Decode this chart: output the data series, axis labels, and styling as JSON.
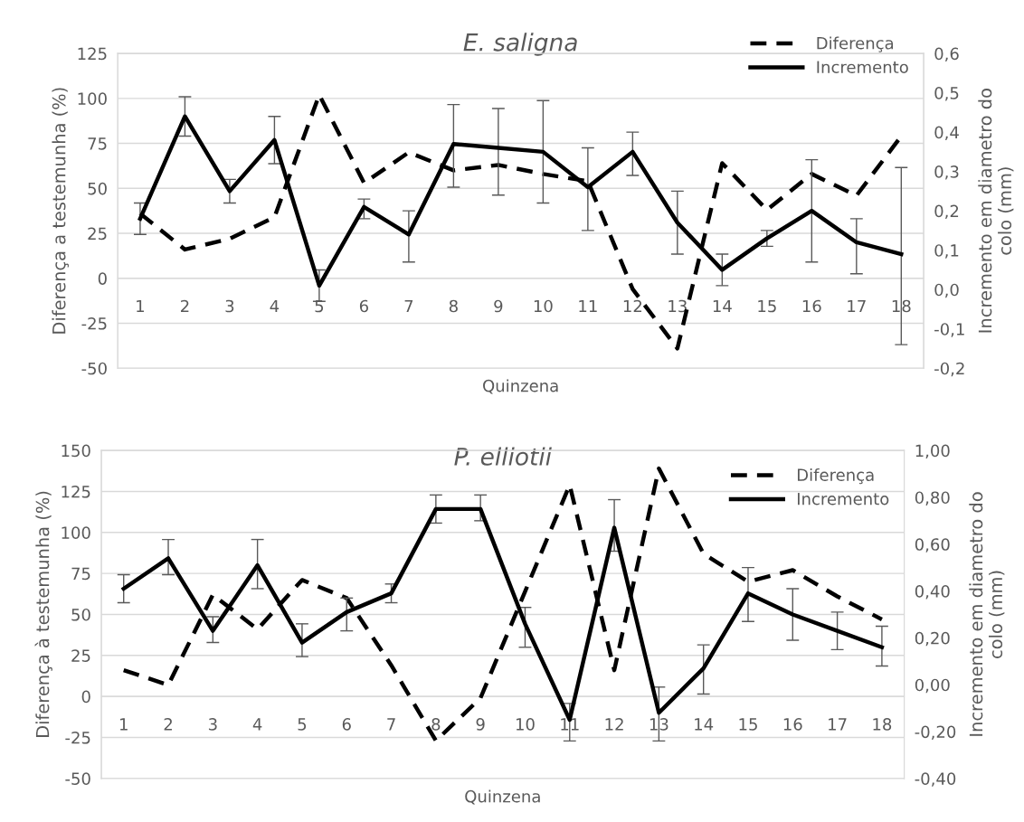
{
  "chart_data": [
    {
      "type": "line",
      "title": "E. saligna",
      "xlabel": "Quinzena",
      "ylabel": "Diferença a testemunha (%)",
      "y2label": "Incremento em diametro do\ncolo (mm)",
      "categories": [
        "1",
        "2",
        "3",
        "4",
        "5",
        "6",
        "7",
        "8",
        "9",
        "10",
        "11",
        "12",
        "13",
        "14",
        "15",
        "16",
        "17",
        "18"
      ],
      "series": [
        {
          "name": "Diferença",
          "color": "#000000",
          "line_style": "dashed",
          "values": [
            36,
            16,
            22,
            34,
            102,
            53,
            70,
            60,
            63,
            58,
            54,
            -6,
            -39,
            64,
            38,
            58,
            46,
            79
          ]
        },
        {
          "name": "Incremento",
          "color": "#000000",
          "line_style": "solid",
          "axis": "y2",
          "values": [
            0.18,
            0.44,
            0.25,
            0.38,
            0.01,
            0.21,
            0.14,
            0.37,
            0.36,
            0.35,
            0.26,
            0.35,
            0.17,
            0.05,
            0.13,
            0.2,
            0.12,
            0.09
          ],
          "errors": [
            [
              0.14,
              0.22
            ],
            [
              0.39,
              0.49
            ],
            [
              0.22,
              0.28
            ],
            [
              0.32,
              0.44
            ],
            [
              -0.03,
              0.05
            ],
            [
              0.18,
              0.23
            ],
            [
              0.07,
              0.2
            ],
            [
              0.26,
              0.47
            ],
            [
              0.24,
              0.46
            ],
            [
              0.22,
              0.48
            ],
            [
              0.15,
              0.36
            ],
            [
              0.29,
              0.4
            ],
            [
              0.09,
              0.25
            ],
            [
              0.01,
              0.09
            ],
            [
              0.11,
              0.15
            ],
            [
              0.07,
              0.33
            ],
            [
              0.04,
              0.18
            ],
            [
              -0.14,
              0.31
            ]
          ]
        }
      ],
      "ylim": [
        -50,
        125
      ],
      "yticks": [
        -50,
        -25,
        0,
        25,
        50,
        75,
        100,
        125
      ],
      "y2lim": [
        -0.2,
        0.6
      ],
      "y2ticks": [
        {
          "value": -0.2,
          "label": "-0,2"
        },
        {
          "value": -0.1,
          "label": "-0,1"
        },
        {
          "value": 0.0,
          "label": "0,0"
        },
        {
          "value": 0.1,
          "label": "0,1"
        },
        {
          "value": 0.2,
          "label": "0,2"
        },
        {
          "value": 0.3,
          "label": "0,3"
        },
        {
          "value": 0.4,
          "label": "0,4"
        },
        {
          "value": 0.5,
          "label": "0,5"
        },
        {
          "value": 0.6,
          "label": "0,6"
        }
      ],
      "grid": "y",
      "legend": "top right",
      "marker": "none"
    },
    {
      "type": "line",
      "title": "P. elliotii",
      "xlabel": "Quinzena",
      "ylabel": "Diferença à testemunha (%)",
      "y2label": "Incremento em diametro do\ncolo (mm)",
      "categories": [
        "1",
        "2",
        "3",
        "4",
        "5",
        "6",
        "7",
        "8",
        "9",
        "10",
        "11",
        "12",
        "13",
        "14",
        "15",
        "16",
        "17",
        "18"
      ],
      "series": [
        {
          "name": "Diferença",
          "color": "#000000",
          "line_style": "dashed",
          "values": [
            16,
            7,
            62,
            41,
            71,
            60,
            19,
            -27,
            -1,
            64,
            129,
            16,
            139,
            87,
            70,
            77,
            61,
            47
          ]
        },
        {
          "name": "Incremento",
          "color": "#000000",
          "line_style": "solid",
          "axis": "y2",
          "values": [
            0.41,
            0.54,
            0.23,
            0.51,
            0.18,
            0.31,
            0.39,
            0.75,
            0.75,
            0.26,
            -0.15,
            0.67,
            -0.12,
            0.07,
            0.39,
            0.3,
            0.23,
            0.16
          ],
          "errors": [
            [
              0.35,
              0.47
            ],
            [
              0.47,
              0.62
            ],
            [
              0.18,
              0.29
            ],
            [
              0.41,
              0.62
            ],
            [
              0.12,
              0.26
            ],
            [
              0.23,
              0.37
            ],
            [
              0.35,
              0.43
            ],
            [
              0.69,
              0.81
            ],
            [
              0.7,
              0.81
            ],
            [
              0.16,
              0.33
            ],
            [
              -0.24,
              -0.08
            ],
            [
              0.57,
              0.79
            ],
            [
              -0.24,
              -0.01
            ],
            [
              -0.04,
              0.17
            ],
            [
              0.27,
              0.5
            ],
            [
              0.19,
              0.41
            ],
            [
              0.15,
              0.31
            ],
            [
              0.08,
              0.25
            ]
          ]
        }
      ],
      "ylim": [
        -50,
        150
      ],
      "yticks": [
        -50,
        -25,
        0,
        25,
        50,
        75,
        100,
        125,
        150
      ],
      "y2lim": [
        -0.4,
        1.0
      ],
      "y2ticks": [
        {
          "value": -0.4,
          "label": "-0,40"
        },
        {
          "value": -0.2,
          "label": "-0,20"
        },
        {
          "value": 0.0,
          "label": "0,00"
        },
        {
          "value": 0.2,
          "label": "0,20"
        },
        {
          "value": 0.4,
          "label": "0,40"
        },
        {
          "value": 0.6,
          "label": "0,60"
        },
        {
          "value": 0.8,
          "label": "0,80"
        },
        {
          "value": 1.0,
          "label": "1,00"
        }
      ],
      "grid": "y",
      "legend": "top right",
      "marker": "none"
    }
  ]
}
